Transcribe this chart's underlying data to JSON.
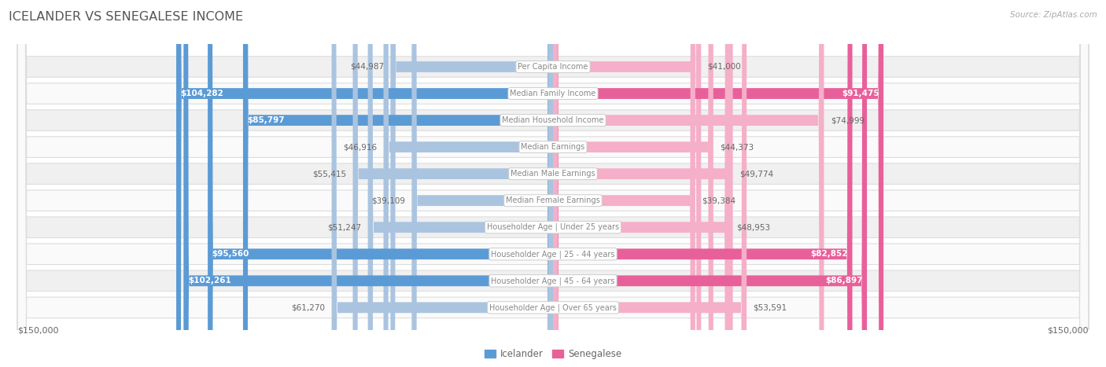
{
  "title": "ICELANDER VS SENEGALESE INCOME",
  "source": "Source: ZipAtlas.com",
  "categories": [
    "Per Capita Income",
    "Median Family Income",
    "Median Household Income",
    "Median Earnings",
    "Median Male Earnings",
    "Median Female Earnings",
    "Householder Age | Under 25 years",
    "Householder Age | 25 - 44 years",
    "Householder Age | 45 - 64 years",
    "Householder Age | Over 65 years"
  ],
  "icelander_values": [
    44987,
    104282,
    85797,
    46916,
    55415,
    39109,
    51247,
    95560,
    102261,
    61270
  ],
  "senegalese_values": [
    41000,
    91475,
    74999,
    44373,
    49774,
    39384,
    48953,
    82852,
    86897,
    53591
  ],
  "icelander_labels": [
    "$44,987",
    "$104,282",
    "$85,797",
    "$46,916",
    "$55,415",
    "$39,109",
    "$51,247",
    "$95,560",
    "$102,261",
    "$61,270"
  ],
  "senegalese_labels": [
    "$41,000",
    "$91,475",
    "$74,999",
    "$44,373",
    "$49,774",
    "$39,384",
    "$48,953",
    "$82,852",
    "$86,897",
    "$53,591"
  ],
  "max_value": 150000,
  "icelander_color_light": "#aac4e0",
  "icelander_color_dark": "#5b9bd5",
  "senegalese_color_light": "#f5afc8",
  "senegalese_color_dark": "#e8609a",
  "label_dark_threshold": 80000,
  "bg_color": "#ffffff",
  "row_bg_even": "#f0f0f0",
  "row_bg_odd": "#fafafa",
  "label_color_outside": "#666666",
  "label_color_inside": "#ffffff",
  "center_box_color": "#ffffff",
  "center_box_edge": "#cccccc",
  "center_text_color": "#888888",
  "title_color": "#555555",
  "source_color": "#aaaaaa",
  "axis_label_color": "#666666"
}
